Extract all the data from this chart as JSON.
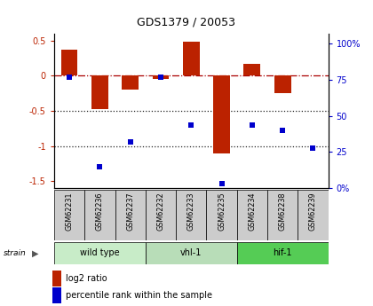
{
  "title": "GDS1379 / 20053",
  "samples": [
    "GSM62231",
    "GSM62236",
    "GSM62237",
    "GSM62232",
    "GSM62233",
    "GSM62235",
    "GSM62234",
    "GSM62238",
    "GSM62239"
  ],
  "bar_values": [
    0.37,
    -0.47,
    -0.2,
    -0.04,
    0.48,
    -1.1,
    0.17,
    -0.25,
    -0.0
  ],
  "pct_values": [
    77,
    15,
    32,
    77,
    44,
    3,
    44,
    40,
    28
  ],
  "group_defs": [
    [
      0,
      3,
      "wild type",
      "#c8ecc8"
    ],
    [
      3,
      6,
      "vhl-1",
      "#b8ddb8"
    ],
    [
      6,
      9,
      "hif-1",
      "#55cc55"
    ]
  ],
  "ylim_left": [
    -1.6,
    0.6
  ],
  "ylim_right": [
    0,
    107
  ],
  "bar_color": "#bb2200",
  "point_color": "#0000cc",
  "zero_line_color": "#aa0000",
  "dot_line_color": "#222222",
  "sample_bg": "#cccccc",
  "left_tick_vals": [
    0.5,
    0.0,
    -0.5,
    -1.0,
    -1.5
  ],
  "left_tick_labels": [
    "0.5",
    "0",
    "-0.5",
    "-1",
    "-1.5"
  ],
  "right_tick_vals": [
    0,
    25,
    50,
    75,
    100
  ],
  "right_tick_labels": [
    "0%",
    "25",
    "50",
    "75",
    "100%"
  ]
}
